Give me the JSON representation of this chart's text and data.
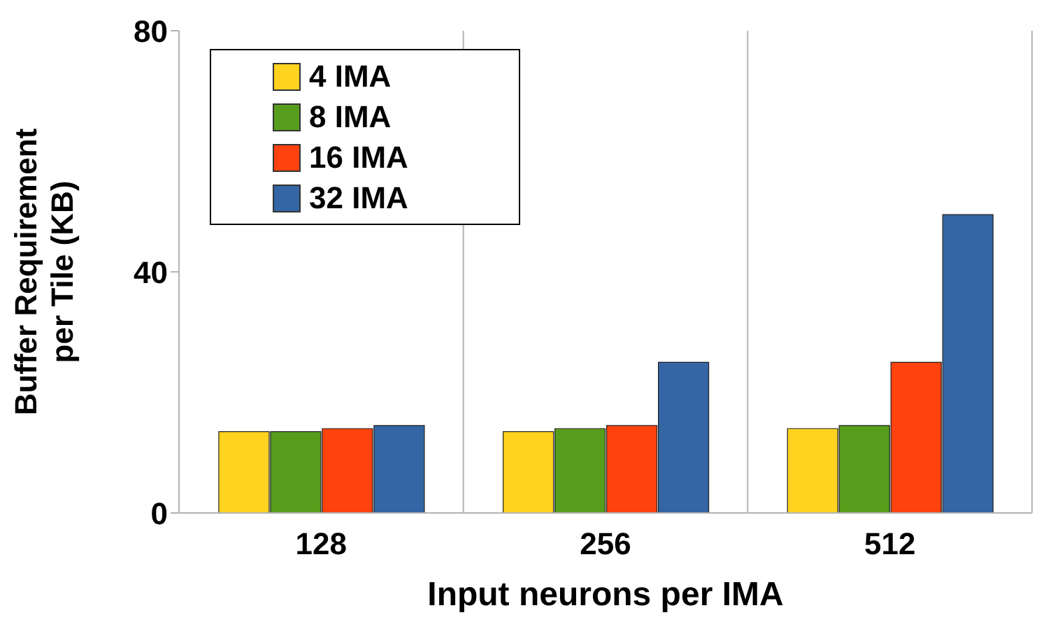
{
  "chart_data": {
    "type": "bar",
    "xlabel": "Input neurons per IMA",
    "ylabel": "Buffer Requirement per Tile (KB)",
    "categories": [
      "128",
      "256",
      "512"
    ],
    "series": [
      {
        "name": "4 IMA",
        "color": "#ffd320",
        "values": [
          13.5,
          13.5,
          14
        ]
      },
      {
        "name": "8 IMA",
        "color": "#579d1c",
        "values": [
          13.5,
          14,
          14.5
        ]
      },
      {
        "name": "16 IMA",
        "color": "#ff420e",
        "values": [
          14,
          14.5,
          25
        ]
      },
      {
        "name": "32 IMA",
        "color": "#3465a4",
        "values": [
          14.5,
          25,
          49.5
        ]
      }
    ],
    "ylim": [
      0,
      80
    ],
    "yticks": [
      0,
      40,
      80
    ],
    "grid": "x",
    "legend": "top left"
  }
}
